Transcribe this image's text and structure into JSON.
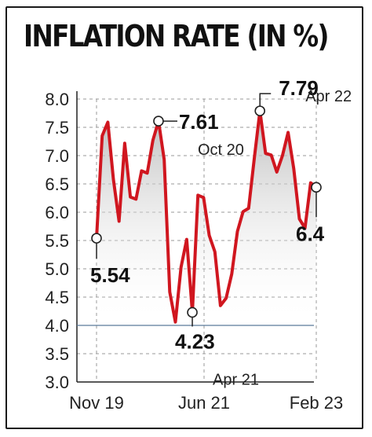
{
  "title": "INFLATION RATE (IN %)",
  "chart_data": {
    "type": "line",
    "title": "INFLATION RATE (IN %)",
    "xlabel": "",
    "ylabel": "",
    "ylim": [
      3.0,
      8.0
    ],
    "yticks": [
      "8.0",
      "7.5",
      "7.0",
      "6.5",
      "6.0",
      "5.5",
      "5.0",
      "4.5",
      "4.0",
      "3.5",
      "3.0"
    ],
    "xticks": [
      "Nov 19",
      "Jun 21",
      "Feb 23"
    ],
    "grid": true,
    "reference_line": 4.0,
    "colors": {
      "line": "#d0161f",
      "fill": "#c8c8c8",
      "grid": "#9a9a9a",
      "reference": "#5a7a9a"
    },
    "series": [
      {
        "values": [
          5.54,
          7.35,
          7.59,
          6.58,
          5.84,
          7.22,
          6.27,
          6.23,
          6.73,
          6.69,
          7.27,
          7.61,
          6.93,
          4.59,
          4.06,
          5.03,
          5.52,
          4.23,
          6.3,
          6.26,
          5.59,
          5.3,
          4.35,
          4.48,
          4.91,
          5.66,
          6.01,
          6.07,
          6.95,
          7.79,
          7.04,
          7.01,
          6.71,
          7.0,
          7.41,
          6.77,
          5.88,
          5.72,
          6.52,
          6.44
        ]
      }
    ],
    "annotations": [
      {
        "value": "5.54",
        "date": ""
      },
      {
        "value": "7.61",
        "date": "Oct 20"
      },
      {
        "value": "4.23",
        "date": "Apr 21"
      },
      {
        "value": "7.79",
        "date": "Apr 22"
      },
      {
        "value": "6.4",
        "date": ""
      }
    ]
  }
}
